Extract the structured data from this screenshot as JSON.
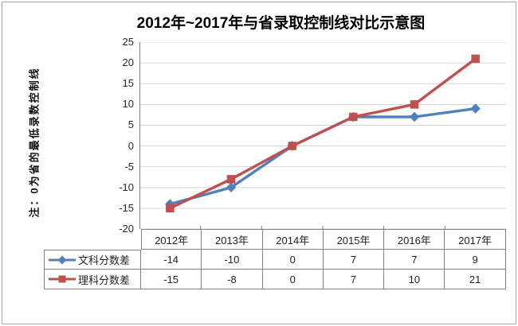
{
  "window": {
    "background": "#ffffff",
    "frame_border_color": "#a8a8a8"
  },
  "chart": {
    "title": "2012年~2017年与省录取控制线对比示意图",
    "note": "注：0为省的最低录数控制线"
  },
  "chart_data": {
    "type": "line",
    "title": "2012年~2017年与省录取控制线对比示意图",
    "note": "注：0为省的最低录数控制线",
    "categories": [
      "2012年",
      "2013年",
      "2014年",
      "2015年",
      "2016年",
      "2017年"
    ],
    "series": [
      {
        "name": "文科分数差",
        "values": [
          -14,
          -10,
          0,
          7,
          7,
          9
        ],
        "color": "#4F81BD",
        "marker": "diamond"
      },
      {
        "name": "理科分数差",
        "values": [
          -15,
          -8,
          0,
          7,
          10,
          21
        ],
        "color": "#C0504D",
        "marker": "square"
      }
    ],
    "ylim": [
      -20,
      25
    ],
    "yticks": [
      25,
      20,
      15,
      10,
      5,
      0,
      -5,
      -10,
      -15,
      -20
    ],
    "grid": true,
    "gridline_color": "#d6d6d6",
    "axis_color": "#7f7f7f",
    "legend_position": "data-table-left",
    "show_data_table": true
  }
}
